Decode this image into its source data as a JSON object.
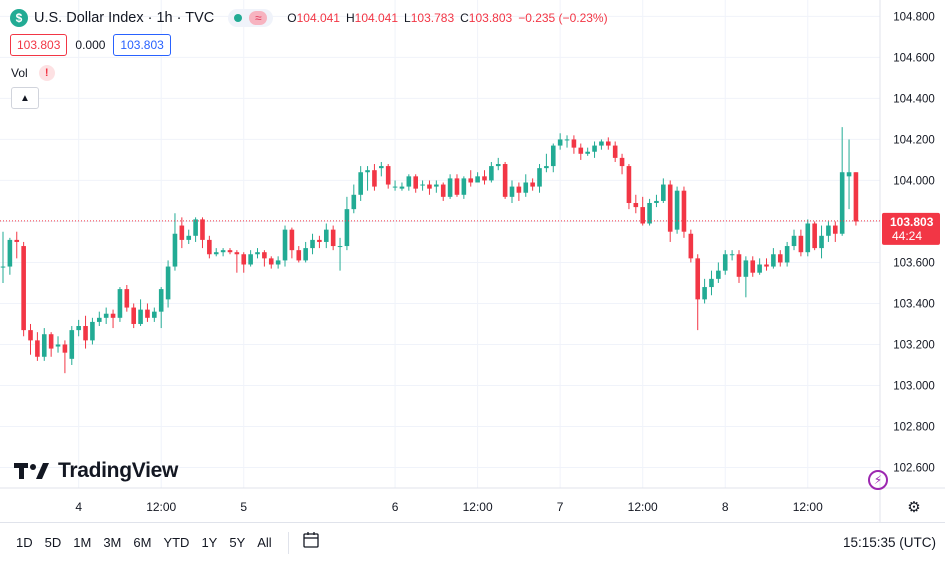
{
  "header": {
    "symbol_logo": "$",
    "title": "U.S. Dollar Index · 1h · TVC",
    "ohlc": {
      "o_label": "O",
      "o": "104.041",
      "h_label": "H",
      "h": "104.041",
      "l_label": "L",
      "l": "103.783",
      "c_label": "C",
      "c": "103.803",
      "change": "−0.235 (−0.23%)"
    },
    "bid": "103.803",
    "spread": "0.000",
    "ask": "103.803",
    "vol_label": "Vol"
  },
  "brand": "TradingView",
  "last_price": {
    "value": "103.803",
    "countdown": "44:24"
  },
  "ranges": [
    "1D",
    "5D",
    "1M",
    "3M",
    "6M",
    "YTD",
    "1Y",
    "5Y",
    "All"
  ],
  "clock": "15:15:35 (UTC)",
  "colors": {
    "up": "#22ab94",
    "down": "#f23645",
    "grid": "#f0f3fa",
    "text": "#131722"
  },
  "chart_data": {
    "type": "candlestick",
    "ylim": [
      102.5,
      104.88
    ],
    "x_range": [
      0,
      127.5
    ],
    "y_ticks": [
      "104.800",
      "104.600",
      "104.400",
      "104.200",
      "104.000",
      "103.800",
      "103.600",
      "103.400",
      "103.200",
      "103.000",
      "102.800",
      "102.600"
    ],
    "x_ticks": [
      {
        "label": "4",
        "x": 11
      },
      {
        "label": "12:00",
        "x": 23
      },
      {
        "label": "5",
        "x": 35
      },
      {
        "label": "6",
        "x": 57
      },
      {
        "label": "12:00",
        "x": 69
      },
      {
        "label": "7",
        "x": 81
      },
      {
        "label": "12:00",
        "x": 93
      },
      {
        "label": "8",
        "x": 105
      },
      {
        "label": "12:00",
        "x": 117
      }
    ],
    "candles": [
      [
        103.58,
        103.58,
        103.75,
        103.5
      ],
      [
        103.58,
        103.71,
        103.72,
        103.54
      ],
      [
        103.71,
        103.7,
        103.75,
        103.62
      ],
      [
        103.68,
        103.27,
        103.7,
        103.24
      ],
      [
        103.27,
        103.22,
        103.3,
        103.15
      ],
      [
        103.22,
        103.14,
        103.26,
        103.12
      ],
      [
        103.14,
        103.25,
        103.28,
        103.12
      ],
      [
        103.25,
        103.18,
        103.26,
        103.14
      ],
      [
        103.19,
        103.2,
        103.24,
        103.16
      ],
      [
        103.2,
        103.16,
        103.22,
        103.06
      ],
      [
        103.13,
        103.27,
        103.29,
        103.1
      ],
      [
        103.27,
        103.29,
        103.32,
        103.24
      ],
      [
        103.29,
        103.22,
        103.34,
        103.18
      ],
      [
        103.22,
        103.31,
        103.33,
        103.2
      ],
      [
        103.31,
        103.33,
        103.36,
        103.29
      ],
      [
        103.33,
        103.35,
        103.38,
        103.3
      ],
      [
        103.35,
        103.33,
        103.37,
        103.28
      ],
      [
        103.33,
        103.47,
        103.48,
        103.31
      ],
      [
        103.47,
        103.38,
        103.49,
        103.36
      ],
      [
        103.38,
        103.3,
        103.4,
        103.28
      ],
      [
        103.3,
        103.37,
        103.42,
        103.29
      ],
      [
        103.37,
        103.33,
        103.4,
        103.31
      ],
      [
        103.33,
        103.36,
        103.38,
        103.31
      ],
      [
        103.36,
        103.47,
        103.48,
        103.28
      ],
      [
        103.42,
        103.58,
        103.61,
        103.38
      ],
      [
        103.58,
        103.74,
        103.84,
        103.56
      ],
      [
        103.78,
        103.71,
        103.82,
        103.67
      ],
      [
        103.71,
        103.73,
        103.76,
        103.69
      ],
      [
        103.73,
        103.81,
        103.82,
        103.7
      ],
      [
        103.81,
        103.71,
        103.82,
        103.67
      ],
      [
        103.71,
        103.64,
        103.73,
        103.62
      ],
      [
        103.64,
        103.65,
        103.67,
        103.63
      ],
      [
        103.65,
        103.66,
        103.67,
        103.63
      ],
      [
        103.66,
        103.65,
        103.67,
        103.64
      ],
      [
        103.65,
        103.64,
        103.66,
        103.55
      ],
      [
        103.64,
        103.59,
        103.65,
        103.55
      ],
      [
        103.59,
        103.64,
        103.66,
        103.58
      ],
      [
        103.64,
        103.65,
        103.67,
        103.62
      ],
      [
        103.65,
        103.62,
        103.66,
        103.58
      ],
      [
        103.62,
        103.59,
        103.63,
        103.57
      ],
      [
        103.59,
        103.61,
        103.63,
        103.57
      ],
      [
        103.61,
        103.76,
        103.78,
        103.58
      ],
      [
        103.76,
        103.66,
        103.77,
        103.62
      ],
      [
        103.66,
        103.61,
        103.68,
        103.6
      ],
      [
        103.61,
        103.67,
        103.7,
        103.6
      ],
      [
        103.67,
        103.71,
        103.74,
        103.64
      ],
      [
        103.71,
        103.7,
        103.73,
        103.67
      ],
      [
        103.7,
        103.76,
        103.79,
        103.67
      ],
      [
        103.76,
        103.68,
        103.78,
        103.66
      ],
      [
        103.68,
        103.68,
        103.72,
        103.56
      ],
      [
        103.68,
        103.86,
        103.92,
        103.66
      ],
      [
        103.86,
        103.93,
        103.98,
        103.84
      ],
      [
        103.93,
        104.04,
        104.07,
        103.9
      ],
      [
        104.04,
        104.05,
        104.07,
        103.95
      ],
      [
        104.05,
        103.97,
        104.08,
        103.95
      ],
      [
        104.06,
        104.07,
        104.09,
        104.02
      ],
      [
        104.07,
        103.98,
        104.08,
        103.96
      ],
      [
        103.97,
        103.97,
        104.0,
        103.95
      ],
      [
        103.96,
        103.97,
        103.99,
        103.95
      ],
      [
        103.97,
        104.02,
        104.03,
        103.95
      ],
      [
        104.02,
        103.96,
        104.03,
        103.94
      ],
      [
        103.98,
        103.98,
        104.0,
        103.95
      ],
      [
        103.98,
        103.96,
        104.0,
        103.93
      ],
      [
        103.97,
        103.98,
        104.0,
        103.94
      ],
      [
        103.98,
        103.92,
        103.99,
        103.9
      ],
      [
        103.92,
        104.01,
        104.03,
        103.91
      ],
      [
        104.01,
        103.93,
        104.03,
        103.92
      ],
      [
        103.93,
        104.01,
        104.02,
        103.91
      ],
      [
        104.01,
        103.99,
        104.05,
        103.97
      ],
      [
        103.99,
        104.02,
        104.04,
        103.99
      ],
      [
        104.02,
        104.0,
        104.05,
        103.98
      ],
      [
        104.0,
        104.07,
        104.09,
        103.99
      ],
      [
        104.07,
        104.08,
        104.11,
        104.05
      ],
      [
        104.08,
        103.92,
        104.09,
        103.91
      ],
      [
        103.92,
        103.97,
        104.0,
        103.89
      ],
      [
        103.97,
        103.94,
        103.99,
        103.9
      ],
      [
        103.94,
        103.99,
        104.03,
        103.92
      ],
      [
        103.99,
        103.97,
        104.01,
        103.95
      ],
      [
        103.97,
        104.06,
        104.08,
        103.94
      ],
      [
        104.06,
        104.07,
        104.13,
        104.04
      ],
      [
        104.07,
        104.17,
        104.18,
        104.04
      ],
      [
        104.17,
        104.2,
        104.23,
        104.15
      ],
      [
        104.2,
        104.2,
        104.22,
        104.16
      ],
      [
        104.2,
        104.16,
        104.22,
        104.13
      ],
      [
        104.16,
        104.13,
        104.18,
        104.1
      ],
      [
        104.13,
        104.14,
        104.16,
        104.12
      ],
      [
        104.14,
        104.17,
        104.19,
        104.11
      ],
      [
        104.17,
        104.19,
        104.2,
        104.15
      ],
      [
        104.19,
        104.17,
        104.21,
        104.15
      ],
      [
        104.17,
        104.11,
        104.19,
        104.09
      ],
      [
        104.11,
        104.07,
        104.13,
        104.03
      ],
      [
        104.07,
        103.89,
        104.08,
        103.86
      ],
      [
        103.89,
        103.87,
        103.93,
        103.84
      ],
      [
        103.87,
        103.79,
        103.92,
        103.78
      ],
      [
        103.79,
        103.89,
        103.91,
        103.78
      ],
      [
        103.89,
        103.9,
        103.93,
        103.87
      ],
      [
        103.9,
        103.98,
        104.01,
        103.89
      ],
      [
        103.98,
        103.75,
        104.0,
        103.7
      ],
      [
        103.76,
        103.95,
        103.97,
        103.74
      ],
      [
        103.95,
        103.75,
        103.97,
        103.72
      ],
      [
        103.74,
        103.62,
        103.76,
        103.6
      ],
      [
        103.62,
        103.42,
        103.64,
        103.27
      ],
      [
        103.42,
        103.48,
        103.52,
        103.4
      ],
      [
        103.48,
        103.52,
        103.56,
        103.44
      ],
      [
        103.52,
        103.56,
        103.6,
        103.5
      ],
      [
        103.56,
        103.64,
        103.66,
        103.54
      ],
      [
        103.64,
        103.64,
        103.66,
        103.61
      ],
      [
        103.64,
        103.53,
        103.66,
        103.5
      ],
      [
        103.53,
        103.61,
        103.63,
        103.43
      ],
      [
        103.61,
        103.55,
        103.63,
        103.53
      ],
      [
        103.55,
        103.59,
        103.62,
        103.54
      ],
      [
        103.59,
        103.58,
        103.62,
        103.56
      ],
      [
        103.58,
        103.64,
        103.67,
        103.57
      ],
      [
        103.64,
        103.6,
        103.66,
        103.58
      ],
      [
        103.6,
        103.68,
        103.7,
        103.58
      ],
      [
        103.68,
        103.73,
        103.76,
        103.66
      ],
      [
        103.73,
        103.65,
        103.76,
        103.63
      ],
      [
        103.65,
        103.79,
        103.81,
        103.63
      ],
      [
        103.79,
        103.67,
        103.8,
        103.66
      ],
      [
        103.67,
        103.73,
        103.78,
        103.62
      ],
      [
        103.73,
        103.78,
        103.8,
        103.7
      ],
      [
        103.78,
        103.74,
        103.8,
        103.7
      ],
      [
        103.74,
        104.04,
        104.26,
        103.73
      ],
      [
        104.02,
        104.04,
        104.2,
        103.86
      ],
      [
        104.04,
        103.8,
        104.04,
        103.78
      ]
    ]
  }
}
